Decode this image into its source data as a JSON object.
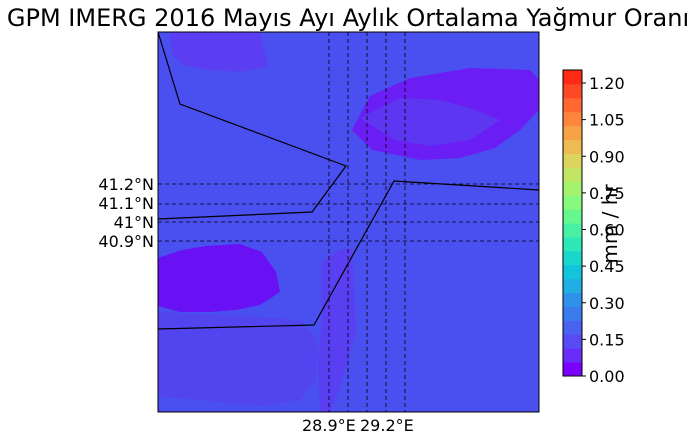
{
  "title": "GPM IMERG 2016 Mayıs Ayı Aylık Ortalama Yağmur Oranı",
  "map": {
    "lat_labels": [
      "41.2°N",
      "41.1°N",
      "41°N",
      "40.9°N"
    ],
    "lon_labels": [
      "28.9°E",
      "29.2°E"
    ],
    "base_color": "#4a4ff0",
    "low_color": "#6a10f4",
    "mid_color": "#5a3ef1"
  },
  "colorbar": {
    "label": "mm / hr",
    "ticks": [
      "0.00",
      "0.15",
      "0.30",
      "0.45",
      "0.60",
      "0.75",
      "0.90",
      "1.05",
      "1.20"
    ],
    "colors": [
      "#7a00ff",
      "#6a2cf8",
      "#5a4af4",
      "#4a62f0",
      "#3a7cee",
      "#2e92ea",
      "#20aee4",
      "#14c4dc",
      "#18d8cc",
      "#2ee8b8",
      "#48f0a4",
      "#66f88e",
      "#86fa7c",
      "#a4f26e",
      "#c2e664",
      "#dcd45c",
      "#eebc52",
      "#f8a248",
      "#fe863c",
      "#ff6830",
      "#ff4824",
      "#ff2a16"
    ]
  }
}
